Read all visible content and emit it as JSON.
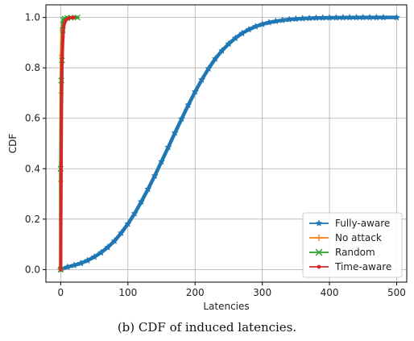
{
  "caption": "(b) CDF of induced latencies.",
  "chart_data": {
    "type": "line",
    "title": "",
    "xlabel": "Latencies",
    "ylabel": "CDF",
    "xlim": [
      -22,
      515
    ],
    "ylim": [
      -0.05,
      1.05
    ],
    "xticks": [
      0,
      100,
      200,
      300,
      400,
      500
    ],
    "yticks": [
      0.0,
      0.2,
      0.4,
      0.6,
      0.8,
      1.0
    ],
    "xtick_labels": [
      "0",
      "100",
      "200",
      "300",
      "400",
      "500"
    ],
    "ytick_labels": [
      "0.0",
      "0.2",
      "0.4",
      "0.6",
      "0.8",
      "1.0"
    ],
    "grid": true,
    "legend_position": "bottom-right",
    "series": [
      {
        "name": "Fully-aware",
        "color": "#1f77b4",
        "marker": "star",
        "x": [
          0,
          10,
          20,
          30,
          40,
          50,
          60,
          70,
          80,
          90,
          100,
          110,
          120,
          130,
          140,
          150,
          160,
          170,
          180,
          190,
          200,
          210,
          220,
          230,
          240,
          250,
          260,
          270,
          280,
          290,
          300,
          310,
          320,
          330,
          340,
          350,
          360,
          370,
          380,
          390,
          400,
          410,
          420,
          430,
          440,
          450,
          460,
          470,
          480,
          500
        ],
        "y": [
          0.0,
          0.01,
          0.017,
          0.025,
          0.036,
          0.05,
          0.067,
          0.088,
          0.113,
          0.145,
          0.181,
          0.222,
          0.269,
          0.319,
          0.372,
          0.428,
          0.485,
          0.542,
          0.598,
          0.653,
          0.705,
          0.753,
          0.797,
          0.836,
          0.868,
          0.895,
          0.918,
          0.937,
          0.952,
          0.964,
          0.973,
          0.98,
          0.985,
          0.989,
          0.992,
          0.994,
          0.996,
          0.997,
          0.998,
          0.9985,
          0.999,
          0.9993,
          0.9995,
          0.9997,
          0.9998,
          0.9999,
          0.9999,
          1.0,
          1.0,
          1.0
        ]
      },
      {
        "name": "No attack",
        "color": "#ff7f0e",
        "marker": "plus",
        "x": [
          0,
          0,
          0.5,
          1,
          2,
          3,
          5,
          8,
          12,
          18
        ],
        "y": [
          0.0,
          0.35,
          0.7,
          0.85,
          0.95,
          0.98,
          0.99,
          0.995,
          0.999,
          1.0
        ]
      },
      {
        "name": "Random",
        "color": "#2ca02c",
        "marker": "x",
        "x": [
          0,
          0,
          1,
          2,
          3,
          4,
          6,
          10,
          15,
          25
        ],
        "y": [
          0.0,
          0.4,
          0.75,
          0.83,
          0.95,
          0.99,
          0.995,
          0.998,
          0.999,
          1.0
        ]
      },
      {
        "name": "Time-aware",
        "color": "#d62728",
        "marker": "dot",
        "x": [
          0,
          0.5,
          1,
          1.5,
          2,
          3,
          4,
          5,
          6,
          8,
          10,
          12,
          15,
          18,
          20
        ],
        "y": [
          0.0,
          0.3,
          0.55,
          0.7,
          0.82,
          0.9,
          0.95,
          0.97,
          0.98,
          0.99,
          0.995,
          0.997,
          0.999,
          1.0,
          1.0
        ]
      }
    ]
  }
}
